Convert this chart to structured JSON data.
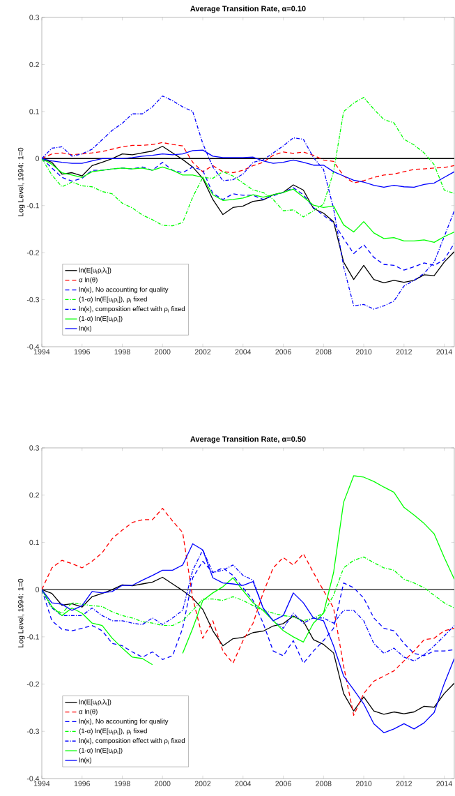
{
  "chart_data": [
    {
      "type": "line",
      "title": "Average Transition Rate, α=0.10",
      "ylabel": "Log Level, 1994: 1=0",
      "x": [
        1994,
        1994.5,
        1995,
        1995.5,
        1996,
        1996.5,
        1997,
        1997.5,
        1998,
        1998.5,
        1999,
        1999.5,
        2000,
        2000.5,
        2001,
        2001.5,
        2002,
        2002.5,
        2003,
        2003.5,
        2004,
        2004.5,
        2005,
        2005.5,
        2006,
        2006.5,
        2007,
        2007.5,
        2008,
        2008.5,
        2009,
        2009.5,
        2010,
        2010.5,
        2011,
        2011.5,
        2012,
        2012.5,
        2013,
        2013.5,
        2014,
        2014.5
      ],
      "xlim": [
        1994,
        2014.5
      ],
      "xticks": [
        1994,
        1996,
        1998,
        2000,
        2002,
        2004,
        2006,
        2008,
        2010,
        2012,
        2014
      ],
      "ylim": [
        -0.4,
        0.3
      ],
      "yticks": [
        -0.4,
        -0.3,
        -0.2,
        -0.1,
        0,
        0.1,
        0.2,
        0.3
      ],
      "legend": "bottom left",
      "ref_lines": [
        {
          "axis": "y",
          "value": 0,
          "color": "#000000"
        }
      ],
      "series": [
        {
          "name": "ln(E[u$_{i}$ρ$_{i}$λ$_{i}$])",
          "color": "#000000",
          "line_style": "solid",
          "values": [
            0,
            -0.008,
            -0.033,
            -0.03,
            -0.037,
            -0.015,
            -0.008,
            0,
            0.01,
            0.008,
            0.012,
            0.016,
            0.026,
            0.012,
            -0.002,
            -0.018,
            -0.042,
            -0.087,
            -0.119,
            -0.104,
            -0.101,
            -0.091,
            -0.088,
            -0.077,
            -0.072,
            -0.056,
            -0.067,
            -0.106,
            -0.116,
            -0.134,
            -0.22,
            -0.257,
            -0.227,
            -0.257,
            -0.264,
            -0.259,
            -0.263,
            -0.259,
            -0.247,
            -0.249,
            -0.22,
            -0.198
          ]
        },
        {
          "name": "α ln(θ)",
          "color": "#ff0000",
          "line_style": "dashed",
          "values": [
            0,
            0.01,
            0.012,
            0.008,
            0.01,
            0.012,
            0.015,
            0.02,
            0.025,
            0.028,
            0.028,
            0.03,
            0.034,
            0.03,
            0.027,
            -0.008,
            -0.028,
            -0.015,
            -0.028,
            -0.03,
            -0.025,
            -0.015,
            -0.008,
            0.007,
            0.014,
            0.011,
            0.014,
            0.007,
            -0.003,
            -0.006,
            -0.037,
            -0.052,
            -0.047,
            -0.04,
            -0.035,
            -0.033,
            -0.028,
            -0.023,
            -0.022,
            -0.02,
            -0.019,
            -0.015
          ]
        },
        {
          "name": "ln(κ), No accounting for quality",
          "color": "#0000ff",
          "line_style": "dashed",
          "values": [
            0,
            -0.02,
            -0.04,
            -0.048,
            -0.042,
            -0.025,
            -0.025,
            -0.022,
            -0.02,
            -0.022,
            -0.018,
            -0.025,
            -0.008,
            -0.025,
            -0.03,
            -0.018,
            -0.025,
            -0.074,
            -0.087,
            -0.075,
            -0.078,
            -0.078,
            -0.087,
            -0.079,
            -0.072,
            -0.062,
            -0.077,
            -0.104,
            -0.121,
            -0.136,
            -0.17,
            -0.202,
            -0.183,
            -0.21,
            -0.225,
            -0.227,
            -0.237,
            -0.23,
            -0.222,
            -0.227,
            -0.215,
            -0.18
          ]
        },
        {
          "name": "(1-α) ln(E[u$_{i}$ρ$_{i}$]), ρ$_{i}$ fixed",
          "color": "#00ff00",
          "line_style": "dashdot",
          "values": [
            0,
            -0.035,
            -0.06,
            -0.05,
            -0.058,
            -0.06,
            -0.07,
            -0.075,
            -0.095,
            -0.105,
            -0.12,
            -0.13,
            -0.142,
            -0.143,
            -0.136,
            -0.082,
            -0.04,
            -0.042,
            -0.028,
            -0.037,
            -0.052,
            -0.067,
            -0.072,
            -0.087,
            -0.111,
            -0.109,
            -0.124,
            -0.111,
            -0.097,
            -0.028,
            0.1,
            0.118,
            0.13,
            0.105,
            0.083,
            0.076,
            0.041,
            0.029,
            0.012,
            -0.013,
            -0.067,
            -0.074
          ]
        },
        {
          "name": "ln(κ), composition effect with ρ$_{i}$ fixed",
          "color": "#0000ff",
          "line_style": "dashdot",
          "values": [
            0,
            0.022,
            0.025,
            0.005,
            0.01,
            0.02,
            0.04,
            0.06,
            0.075,
            0.095,
            0.095,
            0.11,
            0.133,
            0.123,
            0.11,
            0.1,
            0.032,
            -0.018,
            -0.047,
            -0.045,
            -0.033,
            -0.008,
            -0.003,
            0.012,
            0.027,
            0.044,
            0.041,
            0.002,
            -0.023,
            -0.106,
            -0.23,
            -0.313,
            -0.31,
            -0.32,
            -0.313,
            -0.303,
            -0.271,
            -0.259,
            -0.244,
            -0.22,
            -0.166,
            -0.111
          ]
        },
        {
          "name": "(1-α) ln(E[u$_{i}$ρ$_{i}$])",
          "color": "#00ff00",
          "line_style": "solid",
          "values": [
            0,
            -0.012,
            -0.03,
            -0.035,
            -0.04,
            -0.028,
            -0.025,
            -0.022,
            -0.02,
            -0.022,
            -0.02,
            -0.025,
            -0.018,
            -0.025,
            -0.035,
            -0.035,
            -0.04,
            -0.077,
            -0.089,
            -0.087,
            -0.084,
            -0.077,
            -0.082,
            -0.077,
            -0.072,
            -0.065,
            -0.082,
            -0.099,
            -0.104,
            -0.101,
            -0.141,
            -0.156,
            -0.134,
            -0.158,
            -0.17,
            -0.168,
            -0.175,
            -0.175,
            -0.173,
            -0.178,
            -0.166,
            -0.156
          ]
        },
        {
          "name": "ln(κ)",
          "color": "#0000ff",
          "line_style": "solid",
          "values": [
            0,
            -0.005,
            -0.008,
            -0.01,
            -0.01,
            -0.005,
            0,
            0,
            0,
            0.002,
            0.005,
            0.007,
            0.01,
            0.008,
            0.01,
            0.017,
            0.018,
            0.005,
            0.002,
            0.002,
            0.002,
            0.003,
            -0.005,
            -0.01,
            -0.008,
            -0.003,
            -0.008,
            -0.014,
            -0.014,
            -0.028,
            -0.037,
            -0.046,
            -0.05,
            -0.057,
            -0.061,
            -0.057,
            -0.06,
            -0.061,
            -0.055,
            -0.052,
            -0.04,
            -0.028
          ]
        }
      ]
    },
    {
      "type": "line",
      "title": "Average Transition Rate, α=0.50",
      "ylabel": "Log Level, 1994: 1=0",
      "x": [
        1994,
        1994.5,
        1995,
        1995.5,
        1996,
        1996.5,
        1997,
        1997.5,
        1998,
        1998.5,
        1999,
        1999.5,
        2000,
        2000.5,
        2001,
        2001.5,
        2002,
        2002.5,
        2003,
        2003.5,
        2004,
        2004.5,
        2005,
        2005.5,
        2006,
        2006.5,
        2007,
        2007.5,
        2008,
        2008.5,
        2009,
        2009.5,
        2010,
        2010.5,
        2011,
        2011.5,
        2012,
        2012.5,
        2013,
        2013.5,
        2014,
        2014.5
      ],
      "xlim": [
        1994,
        2014.5
      ],
      "xticks": [
        1994,
        1996,
        1998,
        2000,
        2002,
        2004,
        2006,
        2008,
        2010,
        2012,
        2014
      ],
      "ylim": [
        -0.4,
        0.3
      ],
      "yticks": [
        -0.4,
        -0.3,
        -0.2,
        -0.1,
        0,
        0.1,
        0.2,
        0.3
      ],
      "legend": "bottom left",
      "ref_lines": [
        {
          "axis": "y",
          "value": 0,
          "color": "#000000"
        }
      ],
      "series": [
        {
          "name": "ln(E[u$_{i}$ρ$_{i}$λ$_{i}$])",
          "color": "#000000",
          "line_style": "solid",
          "values": [
            0,
            -0.008,
            -0.033,
            -0.03,
            -0.037,
            -0.015,
            -0.008,
            0,
            0.01,
            0.008,
            0.012,
            0.016,
            0.026,
            0.012,
            -0.002,
            -0.018,
            -0.042,
            -0.087,
            -0.119,
            -0.104,
            -0.101,
            -0.091,
            -0.088,
            -0.077,
            -0.072,
            -0.056,
            -0.067,
            -0.106,
            -0.116,
            -0.134,
            -0.22,
            -0.257,
            -0.227,
            -0.257,
            -0.264,
            -0.259,
            -0.263,
            -0.259,
            -0.247,
            -0.249,
            -0.22,
            -0.198
          ]
        },
        {
          "name": "α ln(θ)",
          "color": "#ff0000",
          "line_style": "dashed",
          "values": [
            0,
            0.046,
            0.062,
            0.055,
            0.046,
            0.06,
            0.078,
            0.108,
            0.126,
            0.142,
            0.148,
            0.148,
            0.172,
            0.145,
            0.121,
            -0.018,
            -0.103,
            -0.066,
            -0.13,
            -0.156,
            -0.108,
            -0.071,
            -0.007,
            0.046,
            0.068,
            0.052,
            0.076,
            0.036,
            -0.002,
            -0.039,
            -0.162,
            -0.266,
            -0.22,
            -0.194,
            -0.183,
            -0.172,
            -0.151,
            -0.13,
            -0.106,
            -0.103,
            -0.087,
            -0.082
          ]
        },
        {
          "name": "ln(κ), No accounting for quality",
          "color": "#0000ff",
          "line_style": "dashed",
          "values": [
            0,
            -0.066,
            -0.084,
            -0.087,
            -0.082,
            -0.076,
            -0.087,
            -0.114,
            -0.119,
            -0.132,
            -0.143,
            -0.132,
            -0.148,
            -0.14,
            -0.082,
            0.025,
            0.06,
            0.036,
            0.046,
            0.03,
            0.004,
            -0.023,
            -0.071,
            -0.13,
            -0.14,
            -0.108,
            -0.156,
            -0.13,
            -0.108,
            -0.082,
            0.014,
            0.004,
            -0.018,
            -0.06,
            -0.082,
            -0.087,
            -0.114,
            -0.135,
            -0.14,
            -0.13,
            -0.13,
            -0.127
          ]
        },
        {
          "name": "(1-α) ln(E[u$_{i}$ρ$_{i}$]), ρ$_{i}$ fixed",
          "color": "#00ff00",
          "line_style": "dashdot",
          "values": [
            0,
            -0.039,
            -0.05,
            -0.028,
            -0.031,
            -0.034,
            -0.036,
            -0.047,
            -0.055,
            -0.06,
            -0.068,
            -0.071,
            -0.076,
            -0.076,
            -0.066,
            -0.044,
            -0.02,
            -0.02,
            -0.023,
            -0.015,
            -0.023,
            -0.034,
            -0.044,
            -0.05,
            -0.055,
            -0.058,
            -0.066,
            -0.06,
            -0.05,
            -0.012,
            0.046,
            0.062,
            0.069,
            0.057,
            0.046,
            0.041,
            0.022,
            0.014,
            0.004,
            -0.012,
            -0.028,
            -0.039
          ]
        },
        {
          "name": "ln(κ), composition effect with ρ$_{i}$ fixed",
          "color": "#0000ff",
          "line_style": "dashdot",
          "values": [
            0,
            -0.039,
            -0.055,
            -0.055,
            -0.055,
            -0.039,
            -0.055,
            -0.066,
            -0.066,
            -0.071,
            -0.074,
            -0.06,
            -0.074,
            -0.06,
            -0.044,
            0.041,
            0.084,
            0.036,
            0.041,
            0.052,
            0.03,
            0.02,
            -0.039,
            -0.066,
            -0.082,
            -0.05,
            -0.071,
            -0.06,
            -0.06,
            -0.071,
            -0.044,
            -0.044,
            -0.066,
            -0.114,
            -0.135,
            -0.124,
            -0.143,
            -0.151,
            -0.138,
            -0.119,
            -0.098,
            -0.076
          ]
        },
        {
          "name": "(1-α) ln(E[u$_{i}$ρ$_{i}$])",
          "color": "#00ff00",
          "line_style": "solid",
          "values": [
            0,
            -0.036,
            -0.055,
            -0.039,
            -0.05,
            -0.071,
            -0.076,
            -0.103,
            -0.124,
            -0.143,
            -0.146,
            -0.159,
            null,
            null,
            -0.135,
            -0.082,
            -0.023,
            -0.007,
            0.006,
            0.025,
            -0.002,
            -0.028,
            -0.044,
            -0.066,
            -0.087,
            -0.1,
            -0.111,
            -0.071,
            -0.05,
            0.036,
            0.185,
            0.241,
            0.238,
            0.229,
            0.217,
            0.206,
            0.174,
            0.158,
            0.14,
            0.118,
            0.068,
            0.022
          ]
        },
        {
          "name": "ln(κ)",
          "color": "#0000ff",
          "line_style": "solid",
          "values": [
            0,
            -0.028,
            -0.031,
            -0.044,
            -0.034,
            -0.004,
            -0.007,
            -0.004,
            0.009,
            0.009,
            0.02,
            0.03,
            0.041,
            0.041,
            0.052,
            0.097,
            0.084,
            0.025,
            0.014,
            0.012,
            0.009,
            0.017,
            -0.039,
            -0.066,
            -0.055,
            -0.007,
            -0.028,
            -0.06,
            -0.066,
            -0.119,
            -0.183,
            -0.212,
            -0.242,
            -0.284,
            -0.303,
            -0.295,
            -0.284,
            -0.295,
            -0.282,
            -0.26,
            -0.199,
            -0.146
          ]
        }
      ]
    }
  ]
}
